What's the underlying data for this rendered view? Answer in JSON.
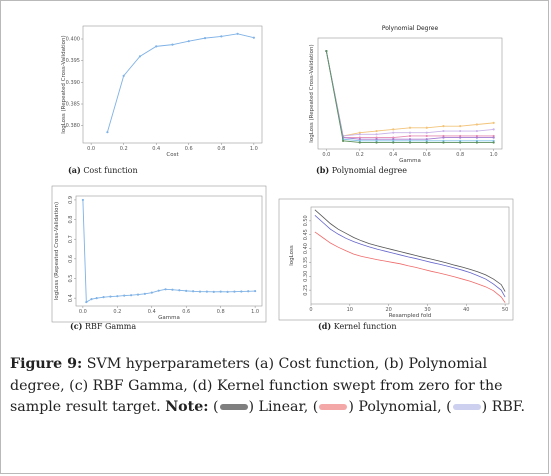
{
  "figure": {
    "label": "Figure 9:",
    "text": " SVM hyperparameters (a) Cost function, (b) Polynomial degree, (c) RBF Gamma, (d) Kernel function swept from zero for the sample result target. ",
    "note_label": "Note:",
    "legend": [
      {
        "open": " (",
        "text": ") Linear, ",
        "color": "#7f7f7f"
      },
      {
        "open": "(",
        "text": ") Polynomial, ",
        "color": "#f4a7a7"
      },
      {
        "open": "(",
        "text": ") RBF.",
        "color": "#cdd0ee"
      }
    ]
  },
  "chart_data": [
    {
      "id": "a",
      "type": "line",
      "caption_tag": "(a)",
      "caption_text": "Cost function",
      "title": "",
      "xlabel": "Cost",
      "ylabel": "logLoss (Repeated Cross-Validation)",
      "xlim": [
        -0.05,
        1.05
      ],
      "ylim": [
        0.376,
        0.403
      ],
      "xticks": [
        "0.0",
        "0.2",
        "0.4",
        "0.6",
        "0.8",
        "1.0"
      ],
      "xtick_values": [
        0.0,
        0.2,
        0.4,
        0.6,
        0.8,
        1.0
      ],
      "yticks": [
        "0.380",
        "0.385",
        "0.390",
        "0.395",
        "0.400"
      ],
      "ytick_values": [
        0.38,
        0.385,
        0.39,
        0.395,
        0.4
      ],
      "color": "#7fb2e6",
      "series": [
        {
          "x": [
            0.1,
            0.2,
            0.3,
            0.4,
            0.5,
            0.6,
            0.7,
            0.8,
            0.9,
            1.0
          ],
          "y": [
            0.3785,
            0.3915,
            0.396,
            0.3983,
            0.3987,
            0.3995,
            0.4002,
            0.4006,
            0.4012,
            0.4003
          ]
        }
      ]
    },
    {
      "id": "b",
      "type": "line",
      "caption_tag": "(b)",
      "caption_text": "Polynomial degree",
      "title": "Polynomial Degree",
      "xlabel": "Gamma",
      "ylabel": "logLoss (Repeated Cross-Validation)",
      "xlim": [
        -0.05,
        1.05
      ],
      "ylim": [
        0.32,
        1.0
      ],
      "xticks": [
        "0.0",
        "0.2",
        "0.4",
        "0.6",
        "0.8",
        "1.0"
      ],
      "xtick_values": [
        0.0,
        0.2,
        0.4,
        0.6,
        0.8,
        1.0
      ],
      "yticks": [],
      "ytick_values": [],
      "series": [
        {
          "color": "#f2c47a",
          "x": [
            0,
            0.1,
            0.2,
            0.3,
            0.4,
            0.5,
            0.6,
            0.7,
            0.8,
            0.9,
            1.0
          ],
          "y": [
            0.92,
            0.4,
            0.42,
            0.43,
            0.44,
            0.45,
            0.45,
            0.46,
            0.46,
            0.47,
            0.48
          ]
        },
        {
          "color": "#c9b3e8",
          "x": [
            0,
            0.1,
            0.2,
            0.3,
            0.4,
            0.5,
            0.6,
            0.7,
            0.8,
            0.9,
            1.0
          ],
          "y": [
            0.92,
            0.4,
            0.41,
            0.41,
            0.42,
            0.42,
            0.42,
            0.43,
            0.43,
            0.43,
            0.44
          ]
        },
        {
          "color": "#e58ab4",
          "x": [
            0,
            0.1,
            0.2,
            0.3,
            0.4,
            0.5,
            0.6,
            0.7,
            0.8,
            0.9,
            1.0
          ],
          "y": [
            0.92,
            0.39,
            0.39,
            0.39,
            0.39,
            0.4,
            0.4,
            0.4,
            0.4,
            0.4,
            0.4
          ]
        },
        {
          "color": "#a37bd1",
          "x": [
            0,
            0.1,
            0.2,
            0.3,
            0.4,
            0.5,
            0.6,
            0.7,
            0.8,
            0.9,
            1.0
          ],
          "y": [
            0.92,
            0.39,
            0.38,
            0.38,
            0.38,
            0.38,
            0.38,
            0.39,
            0.39,
            0.39,
            0.39
          ]
        },
        {
          "color": "#7fc2e6",
          "x": [
            0,
            0.1,
            0.2,
            0.3,
            0.4,
            0.5,
            0.6,
            0.7,
            0.8,
            0.9,
            1.0
          ],
          "y": [
            0.92,
            0.38,
            0.37,
            0.37,
            0.37,
            0.37,
            0.37,
            0.37,
            0.37,
            0.37,
            0.37
          ]
        },
        {
          "color": "#5a8f5a",
          "x": [
            0,
            0.1,
            0.2,
            0.3,
            0.4,
            0.5,
            0.6,
            0.7,
            0.8,
            0.9,
            1.0
          ],
          "y": [
            0.92,
            0.37,
            0.36,
            0.36,
            0.36,
            0.36,
            0.36,
            0.36,
            0.36,
            0.36,
            0.36
          ]
        }
      ]
    },
    {
      "id": "c",
      "type": "line",
      "caption_tag": "(c)",
      "caption_text": "RBF Gamma",
      "title": "",
      "xlabel": "Gamma",
      "ylabel": "logLoss (Repeated Cross-Validation)",
      "xlim": [
        -0.04,
        1.04
      ],
      "ylim": [
        0.36,
        0.92
      ],
      "xticks": [
        "0.0",
        "0.2",
        "0.4",
        "0.6",
        "0.8",
        "1.0"
      ],
      "xtick_values": [
        0.0,
        0.2,
        0.4,
        0.6,
        0.8,
        1.0
      ],
      "yticks": [
        "0.4",
        "0.5",
        "0.6",
        "0.7",
        "0.8",
        "0.9"
      ],
      "ytick_values": [
        0.4,
        0.5,
        0.6,
        0.7,
        0.8,
        0.9
      ],
      "color": "#7fb2e6",
      "series": [
        {
          "x": [
            0.0,
            0.02,
            0.05,
            0.08,
            0.12,
            0.16,
            0.2,
            0.24,
            0.28,
            0.32,
            0.36,
            0.4,
            0.44,
            0.48,
            0.52,
            0.56,
            0.6,
            0.64,
            0.68,
            0.72,
            0.76,
            0.8,
            0.84,
            0.88,
            0.92,
            0.96,
            1.0
          ],
          "y": [
            0.9,
            0.38,
            0.395,
            0.4,
            0.405,
            0.408,
            0.41,
            0.413,
            0.415,
            0.418,
            0.422,
            0.428,
            0.438,
            0.445,
            0.443,
            0.44,
            0.437,
            0.435,
            0.433,
            0.433,
            0.432,
            0.433,
            0.432,
            0.433,
            0.434,
            0.435,
            0.436
          ]
        }
      ]
    },
    {
      "id": "d",
      "type": "line",
      "caption_tag": "(d)",
      "caption_text": "Kernel function",
      "title": "",
      "xlabel": "Resampled fold",
      "ylabel": "logLoss",
      "xlim": [
        0,
        51
      ],
      "ylim": [
        0.2,
        0.55
      ],
      "xticks": [
        "0",
        "10",
        "20",
        "30",
        "40",
        "50"
      ],
      "xtick_values": [
        0,
        10,
        20,
        30,
        40,
        50
      ],
      "yticks": [
        "0.25",
        "0.30",
        "0.35",
        "0.40",
        "0.45",
        "0.50"
      ],
      "ytick_values": [
        0.25,
        0.3,
        0.35,
        0.4,
        0.45,
        0.5
      ],
      "series": [
        {
          "name": "Linear",
          "color": "#555555",
          "x": [
            1,
            3,
            5,
            7,
            9,
            11,
            13,
            15,
            17,
            19,
            21,
            23,
            25,
            27,
            29,
            31,
            33,
            35,
            37,
            39,
            41,
            43,
            45,
            47,
            49,
            50
          ],
          "y": [
            0.54,
            0.515,
            0.49,
            0.47,
            0.455,
            0.44,
            0.428,
            0.418,
            0.41,
            0.403,
            0.396,
            0.389,
            0.382,
            0.375,
            0.368,
            0.362,
            0.355,
            0.348,
            0.34,
            0.333,
            0.325,
            0.316,
            0.305,
            0.29,
            0.27,
            0.245
          ]
        },
        {
          "name": "Polynomial",
          "color": "#f06a6a",
          "x": [
            1,
            3,
            5,
            7,
            9,
            11,
            13,
            15,
            17,
            19,
            21,
            23,
            25,
            27,
            29,
            31,
            33,
            35,
            37,
            39,
            41,
            43,
            45,
            47,
            49,
            50
          ],
          "y": [
            0.46,
            0.44,
            0.42,
            0.405,
            0.392,
            0.38,
            0.372,
            0.366,
            0.36,
            0.355,
            0.35,
            0.345,
            0.338,
            0.332,
            0.325,
            0.318,
            0.312,
            0.305,
            0.298,
            0.29,
            0.282,
            0.272,
            0.262,
            0.248,
            0.225,
            0.205
          ]
        },
        {
          "name": "RBF",
          "color": "#6464cc",
          "x": [
            1,
            3,
            5,
            7,
            9,
            11,
            13,
            15,
            17,
            19,
            21,
            23,
            25,
            27,
            29,
            31,
            33,
            35,
            37,
            39,
            41,
            43,
            45,
            47,
            49,
            50
          ],
          "y": [
            0.52,
            0.495,
            0.47,
            0.452,
            0.437,
            0.425,
            0.415,
            0.406,
            0.398,
            0.391,
            0.384,
            0.377,
            0.37,
            0.364,
            0.357,
            0.35,
            0.344,
            0.337,
            0.33,
            0.322,
            0.313,
            0.302,
            0.29,
            0.272,
            0.25,
            0.225
          ]
        }
      ]
    }
  ]
}
